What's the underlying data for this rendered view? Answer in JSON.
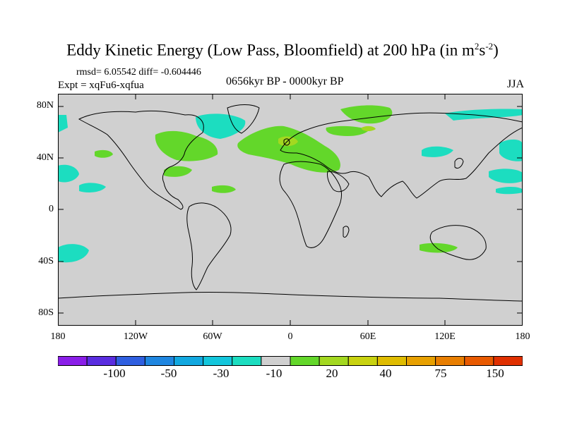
{
  "title": {
    "main": "Eddy Kinetic Energy (Low Pass, Bloomfield) at 200 hPa (in m",
    "sup1": "2",
    "mid": "s",
    "sup2": "-2",
    "close": ")"
  },
  "stats": "rmsd= 6.05542  diff= -0.604446",
  "expt": "Expt = xqFu6-xqfua",
  "period": "0656kyr BP - 0000kyr BP",
  "season": "JJA",
  "y_axis": [
    "80N",
    "40N",
    "0",
    "40S",
    "80S"
  ],
  "x_axis": [
    "180",
    "120W",
    "60W",
    "0",
    "60E",
    "120E",
    "180"
  ],
  "colorbar": {
    "colors": [
      "#8a1ee8",
      "#5a2de0",
      "#2f5fe0",
      "#1f86e0",
      "#12a8e0",
      "#13c6dc",
      "#1cddc0",
      "#d0d0d0",
      "#63d72a",
      "#a3d820",
      "#c8d210",
      "#dfbc00",
      "#e7a000",
      "#e87e00",
      "#e85a00",
      "#e03000"
    ],
    "labels": [
      "-100",
      "-50",
      "-30",
      "-10",
      "20",
      "40",
      "75",
      "150"
    ]
  },
  "colors": {
    "land_fill": "#d0d0d0",
    "cyan": "#1cddc0",
    "green": "#63d72a",
    "yellow_green": "#a3d820"
  }
}
